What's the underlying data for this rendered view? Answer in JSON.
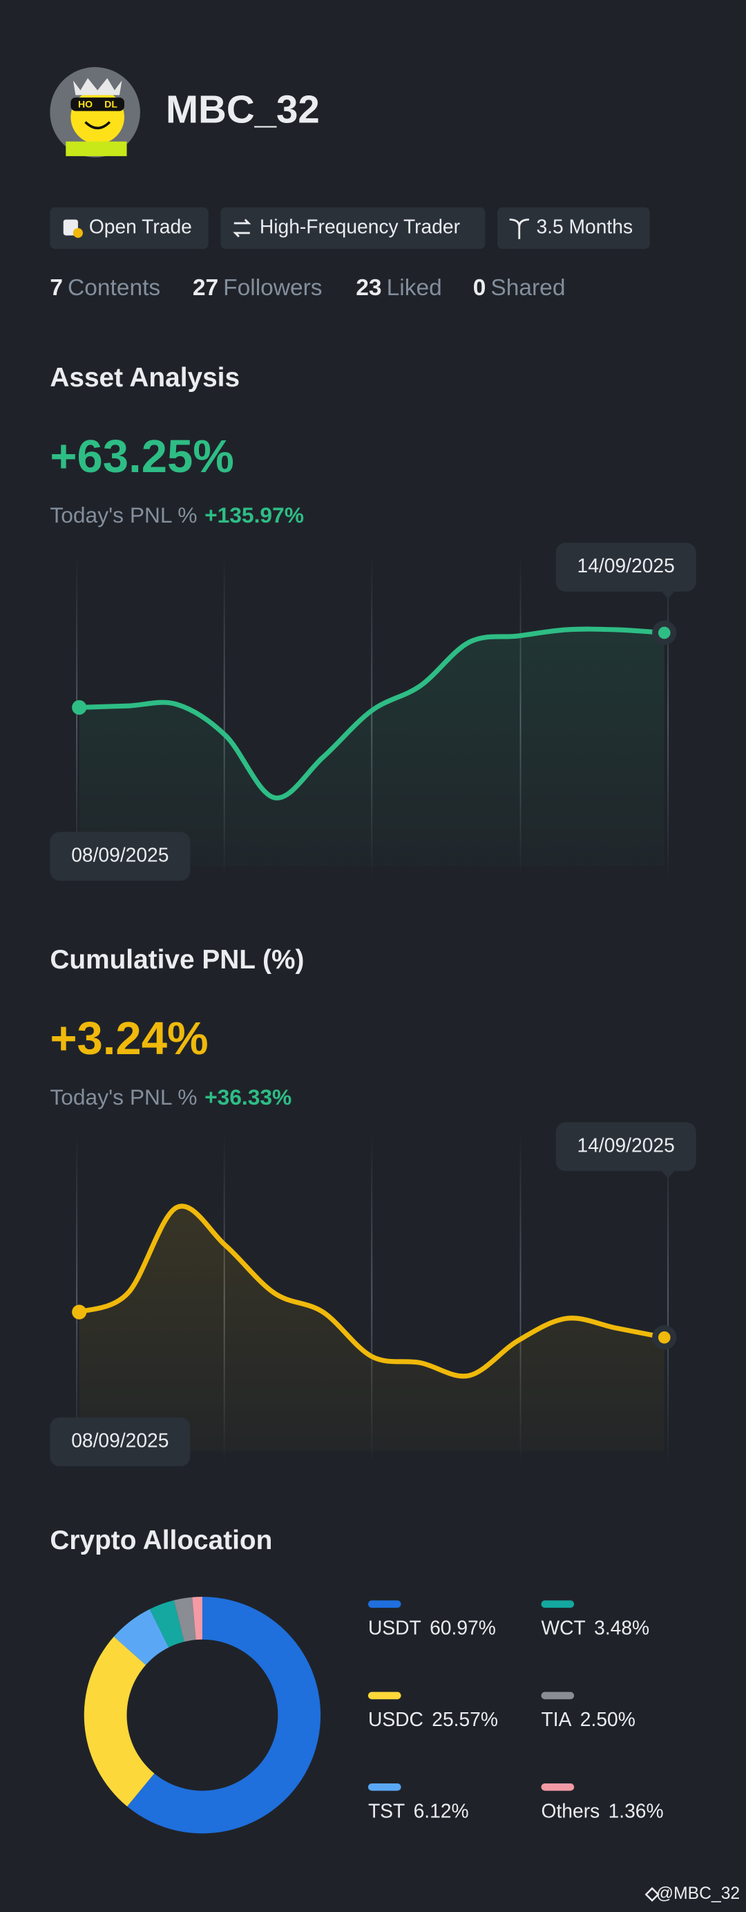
{
  "profile": {
    "username": "MBC_32",
    "badges": [
      "Open Trade",
      "High-Frequency Trader",
      "3.5 Months"
    ],
    "stats": [
      {
        "count": 7,
        "label": "Contents"
      },
      {
        "count": 27,
        "label": "Followers"
      },
      {
        "count": 23,
        "label": "Liked"
      },
      {
        "count": 0,
        "label": "Shared"
      }
    ]
  },
  "chart_data": [
    {
      "type": "line",
      "title": "Asset Analysis",
      "headline": "+63.25%",
      "subtitle_label": "Today's PNL %",
      "subtitle_value": "+135.97%",
      "categories": [
        "08/09/2025",
        null,
        null,
        null,
        null,
        null,
        null,
        null,
        null,
        null,
        null,
        null,
        "14/09/2025"
      ],
      "series": [
        {
          "color": "#2ebd85",
          "values": [
            51,
            51.5,
            52,
            42,
            22,
            35,
            50,
            58,
            72,
            74,
            76,
            76,
            75
          ]
        }
      ],
      "ylim": [
        0,
        100
      ]
    },
    {
      "type": "line",
      "title": "Cumulative PNL (%)",
      "headline": "+3.24%",
      "subtitle_label": "Today's PNL %",
      "subtitle_value": "+36.33%",
      "categories": [
        "08/09/2025",
        null,
        null,
        null,
        null,
        null,
        null,
        null,
        null,
        null,
        null,
        null,
        "14/09/2025"
      ],
      "series": [
        {
          "color": "#f0b90b",
          "values": [
            44,
            50,
            77,
            65,
            50,
            44,
            30,
            28,
            24,
            35,
            42,
            39,
            36
          ]
        }
      ],
      "ylim": [
        0,
        100
      ]
    },
    {
      "type": "pie",
      "title": "Crypto Allocation",
      "categories": [
        "USDT",
        "USDC",
        "TST",
        "WCT",
        "TIA",
        "Others"
      ],
      "values": [
        60.97,
        25.57,
        6.12,
        3.48,
        2.5,
        1.36
      ],
      "value_labels": [
        "60.97%",
        "25.57%",
        "6.12%",
        "3.48%",
        "2.50%",
        "1.36%"
      ],
      "colors": [
        "#1f6fdc",
        "#fdd83a",
        "#5aa8f5",
        "#14a8a0",
        "#8a8d93",
        "#f49aa5"
      ]
    }
  ],
  "footer": {
    "handle": "@MBC_32"
  }
}
